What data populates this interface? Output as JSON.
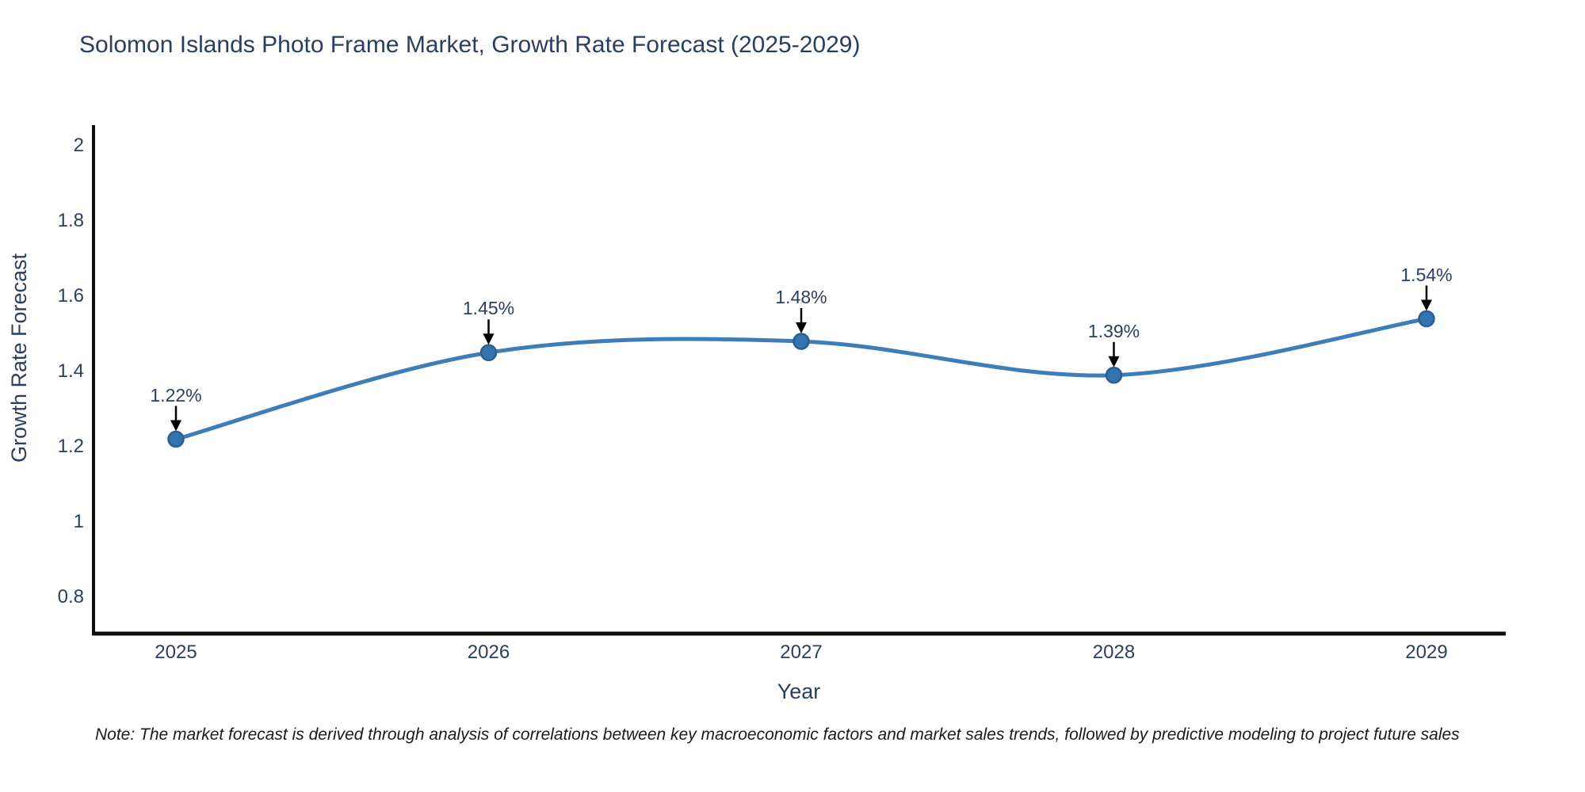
{
  "title": "Solomon Islands Photo Frame Market, Growth Rate Forecast (2025-2029)",
  "note": "Note: The market forecast is derived through analysis of correlations between key macroeconomic factors and market sales trends, followed by predictive modeling to project future sales",
  "chart_data": {
    "type": "line",
    "line_shape": "spline",
    "title": "Solomon Islands Photo Frame Market, Growth Rate Forecast (2025-2029)",
    "xlabel": "Year",
    "ylabel": "Growth Rate Forecast",
    "x": [
      2025,
      2026,
      2027,
      2028,
      2029
    ],
    "values": [
      1.22,
      1.45,
      1.48,
      1.39,
      1.54
    ],
    "point_labels": [
      "1.22%",
      "1.45%",
      "1.48%",
      "1.39%",
      "1.54%"
    ],
    "x_tick_labels": [
      "2025",
      "2026",
      "2027",
      "2028",
      "2029"
    ],
    "y_tick_labels": [
      "2",
      "1.8",
      "1.6",
      "1.4",
      "1.2",
      "1",
      "0.8"
    ],
    "y_tick_values": [
      2,
      1.8,
      1.6,
      1.4,
      1.2,
      1,
      0.8
    ],
    "xlim": [
      2024.73,
      2029.25
    ],
    "ylim": [
      0.7,
      2.05
    ],
    "grid": false,
    "legend_position": "none",
    "marker": "circle",
    "annotation_style": "label-above-with-down-arrow",
    "colors": {
      "line": "#3d7db9",
      "marker": "#3474ae",
      "marker_edge": "#2b5f91",
      "axis": "#0d0d0d",
      "arrow": "#000000",
      "text": "#2a3f5f",
      "note_text": "#1a1a1a",
      "background": "#ffffff"
    }
  }
}
